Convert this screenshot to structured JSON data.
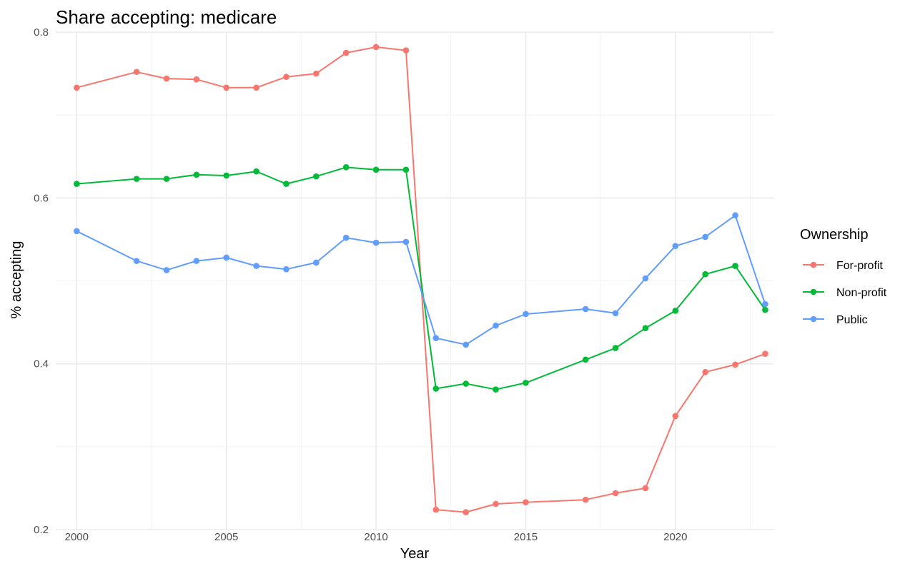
{
  "chart_data": {
    "type": "line",
    "title": "Share accepting: medicare",
    "xlabel": "Year",
    "ylabel": "% accepting",
    "xlim": [
      1999.3,
      2023.3
    ],
    "ylim": [
      0.2,
      0.8
    ],
    "x_ticks": [
      2000,
      2005,
      2010,
      2015,
      2020
    ],
    "x_minor_ticks": [
      2002.5,
      2007.5,
      2012.5,
      2017.5,
      2022.5
    ],
    "y_ticks": [
      0.2,
      0.4,
      0.6,
      0.8
    ],
    "y_minor_ticks": [
      0.3,
      0.5,
      0.7
    ],
    "x_tick_labels": [
      "2000",
      "2005",
      "2010",
      "2015",
      "2020"
    ],
    "y_tick_labels": [
      "0.2",
      "0.4",
      "0.6",
      "0.8"
    ],
    "grid": true,
    "legend": {
      "title": "Ownership",
      "position": "right"
    },
    "series": [
      {
        "name": "For-profit",
        "color": "#F8766D",
        "x": [
          2000,
          2002,
          2003,
          2004,
          2005,
          2006,
          2007,
          2008,
          2009,
          2010,
          2011,
          2012,
          2013,
          2014,
          2015,
          2017,
          2018,
          2019,
          2020,
          2021,
          2022,
          2023
        ],
        "y": [
          0.733,
          0.752,
          0.744,
          0.743,
          0.733,
          0.733,
          0.746,
          0.75,
          0.775,
          0.782,
          0.778,
          0.224,
          0.221,
          0.231,
          0.233,
          0.236,
          0.244,
          0.25,
          0.337,
          0.39,
          0.399,
          0.412
        ]
      },
      {
        "name": "Non-profit",
        "color": "#00BA38",
        "x": [
          2000,
          2002,
          2003,
          2004,
          2005,
          2006,
          2007,
          2008,
          2009,
          2010,
          2011,
          2012,
          2013,
          2014,
          2015,
          2017,
          2018,
          2019,
          2020,
          2021,
          2022,
          2023
        ],
        "y": [
          0.617,
          0.623,
          0.623,
          0.628,
          0.627,
          0.632,
          0.617,
          0.626,
          0.637,
          0.634,
          0.634,
          0.37,
          0.376,
          0.369,
          0.377,
          0.405,
          0.419,
          0.443,
          0.464,
          0.508,
          0.518,
          0.465
        ]
      },
      {
        "name": "Public",
        "color": "#619CFF",
        "x": [
          2000,
          2002,
          2003,
          2004,
          2005,
          2006,
          2007,
          2008,
          2009,
          2010,
          2011,
          2012,
          2013,
          2014,
          2015,
          2017,
          2018,
          2019,
          2020,
          2021,
          2022,
          2023
        ],
        "y": [
          0.56,
          0.524,
          0.513,
          0.524,
          0.528,
          0.518,
          0.514,
          0.522,
          0.552,
          0.546,
          0.547,
          0.431,
          0.423,
          0.446,
          0.46,
          0.466,
          0.461,
          0.503,
          0.542,
          0.553,
          0.579,
          0.472
        ]
      }
    ]
  }
}
